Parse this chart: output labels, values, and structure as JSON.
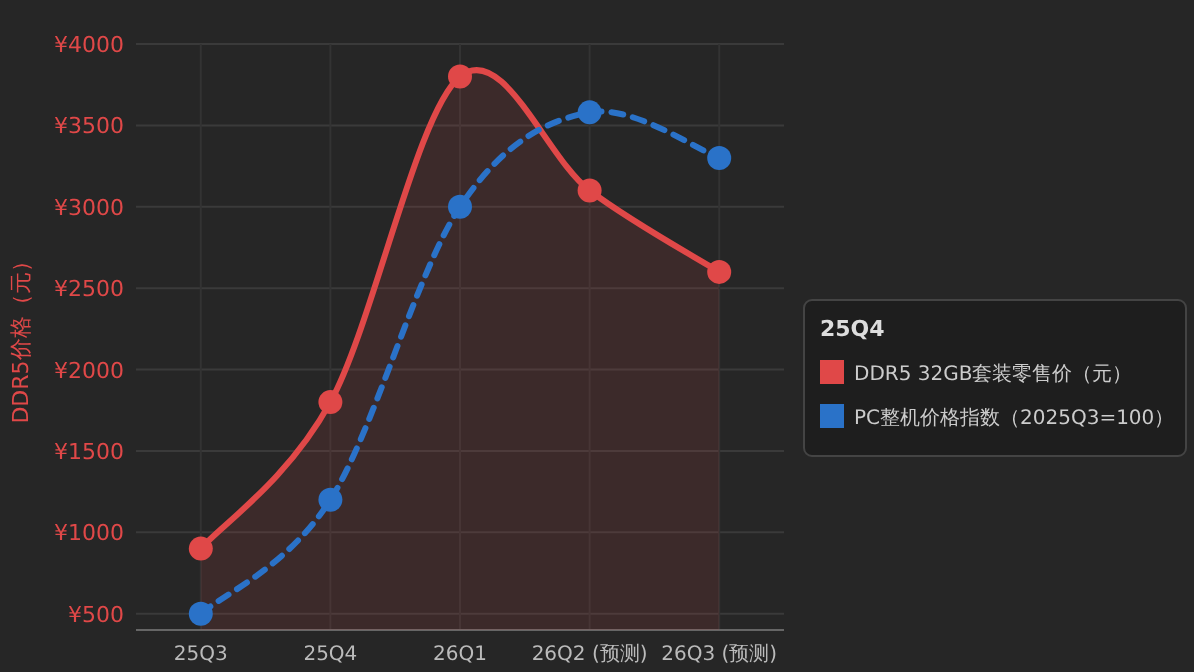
{
  "chart_data": {
    "type": "line",
    "ylabel": "DDR5价格（元）",
    "categories": [
      "25Q3",
      "25Q4",
      "26Q1",
      "26Q2 (预测)",
      "26Q3 (预测)"
    ],
    "series": [
      {
        "name": "DDR5 32GB套装零售价（元）",
        "type": "area",
        "color": "#e04848",
        "values": [
          900,
          1800,
          3800,
          3100,
          2600
        ]
      },
      {
        "name": "PC整机价格指数（2025Q3=100）",
        "line_style": "dashed",
        "color": "#2a72c8",
        "values": [
          500,
          1200,
          3000,
          3580,
          3300
        ]
      }
    ],
    "ylim": [
      400,
      4000
    ],
    "yticks": [
      {
        "value": 500,
        "label": "¥500"
      },
      {
        "value": 1000,
        "label": "¥1000"
      },
      {
        "value": 1500,
        "label": "¥1500"
      },
      {
        "value": 2000,
        "label": "¥2000"
      },
      {
        "value": 2500,
        "label": "¥2500"
      },
      {
        "value": 3000,
        "label": "¥3000"
      },
      {
        "value": 3500,
        "label": "¥3500"
      },
      {
        "value": 4000,
        "label": "¥4000"
      }
    ],
    "grid": true,
    "marker": "circle",
    "legend": "right",
    "legend_title": "25Q4"
  }
}
